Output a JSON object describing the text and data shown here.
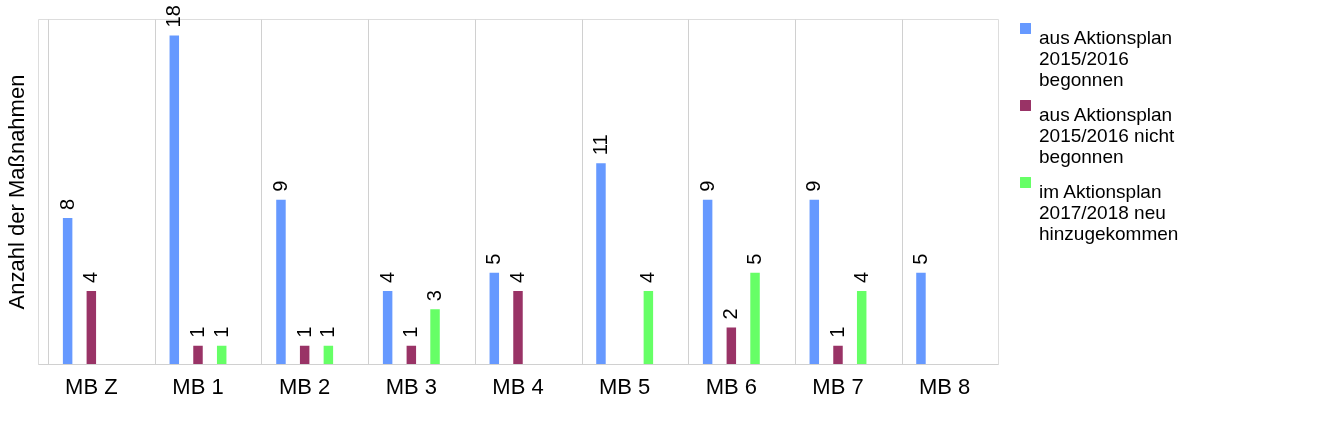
{
  "chart_data": {
    "type": "bar",
    "ylabel": "Anzahl der Maßnahmen",
    "categories": [
      "MB  Z",
      "MB  1",
      "MB  2",
      "MB  3",
      "MB  4",
      "MB  5",
      "MB  6",
      "MB  7",
      "MB  8"
    ],
    "series": [
      {
        "name": "aus Aktionsplan 2015/2016 begonnen",
        "color": "#6699ff",
        "values": [
          8,
          18,
          9,
          4,
          5,
          11,
          9,
          9,
          5
        ]
      },
      {
        "name": "aus Aktionsplan 2015/2016 nicht begonnen",
        "color": "#993366",
        "values": [
          4,
          1,
          1,
          1,
          4,
          null,
          2,
          1,
          null
        ]
      },
      {
        "name": "im Aktionsplan 2017/2018 neu hinzugekommen",
        "color": "#66ff66",
        "values": [
          null,
          1,
          1,
          3,
          null,
          4,
          5,
          4,
          null
        ]
      }
    ],
    "data_labels": true,
    "grid": "x",
    "legend": "right",
    "tick_labels": "x"
  }
}
